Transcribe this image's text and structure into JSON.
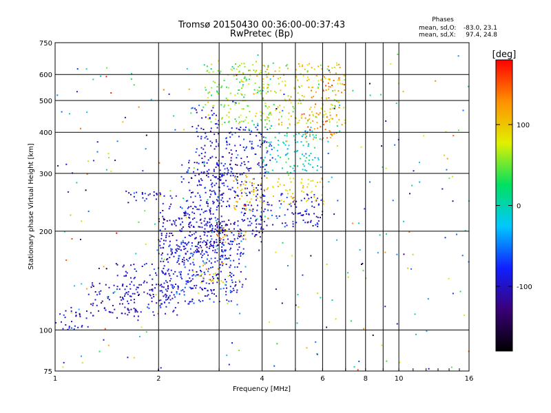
{
  "chart_data": {
    "type": "scatter",
    "title": "Tromsø 20150430 00:36:00-00:37:43",
    "subtitle": "RwPretec (Bp)",
    "xlabel": "Frequency [MHz]",
    "ylabel": "Stationary phase Virtual Height [km]",
    "x_scale": "log",
    "y_scale": "log",
    "xlim": [
      1,
      16
    ],
    "ylim": [
      75,
      750
    ],
    "x_ticks": [
      1,
      2,
      4,
      6,
      8,
      10,
      16
    ],
    "y_ticks": [
      75,
      100,
      200,
      300,
      400,
      500,
      600,
      750
    ],
    "x_grid": [
      2,
      3,
      4,
      5,
      6,
      7,
      8,
      9,
      10
    ],
    "y_grid": [
      100,
      200,
      300,
      400,
      500,
      600
    ],
    "grid": true,
    "stats": {
      "heading": "Phases",
      "o_label": "mean, sd,O:",
      "o_values": "-83.0, 23.1",
      "x_label": "mean, sd,X:",
      "x_values": "97.4, 24.8"
    },
    "colorbar": {
      "label": "[deg]",
      "range": [
        -180,
        180
      ],
      "ticks": [
        100,
        0,
        -100
      ],
      "colormap": "rainbow",
      "colors": [
        "#000000",
        "#3a0078",
        "#1020ff",
        "#00c8ff",
        "#00e060",
        "#e0f000",
        "#ff9000",
        "#ff0000"
      ]
    },
    "clusters": [
      {
        "x": [
          1.0,
          1.25
        ],
        "y": [
          100,
          118
        ],
        "phase": -95,
        "spread": 5
      },
      {
        "x": [
          1.25,
          2.3
        ],
        "y": [
          110,
          140
        ],
        "phase": -105,
        "spread": 7
      },
      {
        "x": [
          1.5,
          2.2
        ],
        "y": [
          125,
          160
        ],
        "phase": -95,
        "spread": 6
      },
      {
        "x": [
          2.0,
          3.3
        ],
        "y": [
          120,
          190
        ],
        "phase": -90,
        "spread": 8
      },
      {
        "x": [
          2.3,
          3.6
        ],
        "y": [
          130,
          200
        ],
        "phase": -85,
        "spread": 7
      },
      {
        "x": [
          2.0,
          2.9
        ],
        "y": [
          160,
          240
        ],
        "phase": -100,
        "spread": 7
      },
      {
        "x": [
          2.6,
          3.1
        ],
        "y": [
          138,
          160
        ],
        "phase": 110,
        "spread": 6
      },
      {
        "x": [
          1.6,
          2.3
        ],
        "y": [
          240,
          265
        ],
        "phase": -95,
        "spread": 6
      },
      {
        "x": [
          2.3,
          3.2
        ],
        "y": [
          200,
          330
        ],
        "phase": -95,
        "spread": 7
      },
      {
        "x": [
          2.5,
          3.0
        ],
        "y": [
          300,
          480
        ],
        "phase": -100,
        "spread": 6
      },
      {
        "x": [
          2.7,
          4.1
        ],
        "y": [
          180,
          215
        ],
        "phase": -105,
        "spread": 5
      },
      {
        "x": [
          2.9,
          3.6
        ],
        "y": [
          185,
          205
        ],
        "phase": 110,
        "spread": 6
      },
      {
        "x": [
          2.8,
          4.2
        ],
        "y": [
          200,
          320
        ],
        "phase": -95,
        "spread": 7
      },
      {
        "x": [
          3.3,
          4.2
        ],
        "y": [
          230,
          300
        ],
        "phase": 105,
        "spread": 6
      },
      {
        "x": [
          3.0,
          4.3
        ],
        "y": [
          300,
          420
        ],
        "phase": -85,
        "spread": 7
      },
      {
        "x": [
          4.0,
          6.0
        ],
        "y": [
          205,
          260
        ],
        "phase": -90,
        "spread": 6
      },
      {
        "x": [
          4.3,
          6.1
        ],
        "y": [
          240,
          290
        ],
        "phase": 100,
        "spread": 5
      },
      {
        "x": [
          5.4,
          6.0
        ],
        "y": [
          205,
          225
        ],
        "phase": -120,
        "spread": 4
      },
      {
        "x": [
          4.0,
          6.0
        ],
        "y": [
          300,
          420
        ],
        "phase": 0,
        "spread": 8
      },
      {
        "x": [
          2.7,
          4.2
        ],
        "y": [
          420,
          650
        ],
        "phase": 60,
        "spread": 9
      },
      {
        "x": [
          4.0,
          7.0
        ],
        "y": [
          420,
          650
        ],
        "phase": 90,
        "spread": 9
      },
      {
        "x": [
          5.2,
          6.6
        ],
        "y": [
          380,
          460
        ],
        "phase": 135,
        "spread": 4
      },
      {
        "x": [
          6.0,
          7.0
        ],
        "y": [
          520,
          620
        ],
        "phase": 130,
        "spread": 4
      },
      {
        "x": [
          1.0,
          16.0
        ],
        "y": [
          75,
          700
        ],
        "phase": 0,
        "spread": 10
      }
    ]
  }
}
